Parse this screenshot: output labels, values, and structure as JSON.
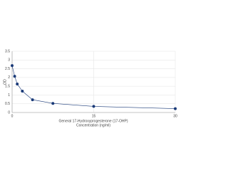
{
  "chart_data": {
    "type": "line",
    "y_label": "OD",
    "x_label": "General 17-Hydroxyprogesterone (17-OHP)",
    "x_unit_label": "Concentration (ng/ml)",
    "x": [
      0,
      0.47,
      0.94,
      1.88,
      3.75,
      7.5,
      15,
      30
    ],
    "series": [
      {
        "color": "#1a3a78",
        "values": [
          2.68,
          2.07,
          1.63,
          1.22,
          0.73,
          0.52,
          0.35,
          0.22
        ]
      }
    ],
    "xlim": [
      0,
      30
    ],
    "xticks": [
      0,
      15,
      30
    ],
    "ylim": [
      0,
      3.5
    ],
    "yticks": [
      0,
      0.5,
      1,
      1.5,
      2,
      2.5,
      3,
      3.5
    ],
    "grid": true
  }
}
